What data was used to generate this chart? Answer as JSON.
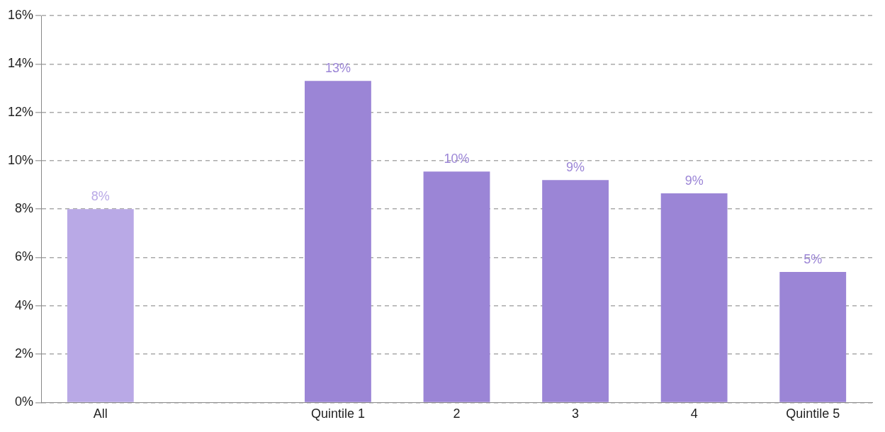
{
  "chart_data": {
    "type": "bar",
    "categories": [
      "All",
      null,
      "Quintile 1",
      "2",
      "3",
      "4",
      "Quintile 5"
    ],
    "values": [
      8.0,
      null,
      13.3,
      9.55,
      9.2,
      8.65,
      5.4
    ],
    "value_labels": [
      "8%",
      null,
      "13%",
      "10%",
      "9%",
      "9%",
      "5%"
    ],
    "colors": [
      "#b9a9e6",
      "#9b85d6",
      "#9b85d6",
      "#9b85d6",
      "#9b85d6",
      "#9b85d6",
      "#9b85d6"
    ],
    "ylim": [
      0,
      16
    ],
    "yticks": [
      {
        "value": 0,
        "label": "0%"
      },
      {
        "value": 2,
        "label": "2%"
      },
      {
        "value": 4,
        "label": "4%"
      },
      {
        "value": 6,
        "label": "6%"
      },
      {
        "value": 8,
        "label": "8%"
      },
      {
        "value": 10,
        "label": "10%"
      },
      {
        "value": 12,
        "label": "12%"
      },
      {
        "value": 14,
        "label": "14%"
      },
      {
        "value": 16,
        "label": "16%"
      }
    ],
    "grid": "y",
    "legend": false
  }
}
